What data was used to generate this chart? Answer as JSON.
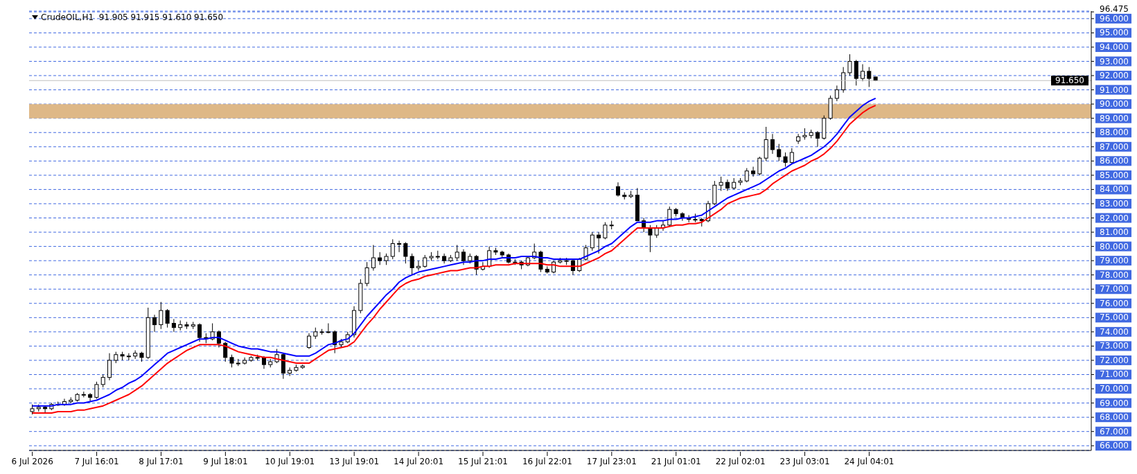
{
  "chart_data": {
    "type": "candlestick",
    "title": "CrudeOIL,H1  91.905 91.915 91.610 91.650",
    "categories": [
      "6 Jul 2026",
      null,
      null,
      null,
      null,
      null,
      null,
      null,
      null,
      null,
      "7 Jul 16:01",
      null,
      null,
      null,
      null,
      null,
      null,
      null,
      null,
      null,
      "8 Jul 17:01",
      null,
      null,
      null,
      null,
      null,
      null,
      null,
      null,
      null,
      "9 Jul 18:01",
      null,
      null,
      null,
      null,
      null,
      null,
      null,
      null,
      null,
      "10 Jul 19:01",
      null,
      null,
      null,
      null,
      null,
      null,
      null,
      null,
      null,
      "13 Jul 19:01",
      null,
      null,
      null,
      null,
      null,
      null,
      null,
      null,
      null,
      "14 Jul 20:01",
      null,
      null,
      null,
      null,
      null,
      null,
      null,
      null,
      null,
      "15 Jul 21:01",
      null,
      null,
      null,
      null,
      null,
      null,
      null,
      null,
      null,
      "16 Jul 22:01",
      null,
      null,
      null,
      null,
      null,
      null,
      null,
      null,
      null,
      "17 Jul 23:01",
      null,
      null,
      null,
      null,
      null,
      null,
      null,
      null,
      null,
      "21 Jul 01:01",
      null,
      null,
      null,
      null,
      null,
      null,
      null,
      null,
      null,
      "22 Jul 02:01",
      null,
      null,
      null,
      null,
      null,
      null,
      null,
      null,
      null,
      "23 Jul 03:01",
      null,
      null,
      null,
      null,
      null,
      null,
      null,
      null,
      null,
      "24 Jul 04:01",
      null,
      null,
      null,
      null,
      null,
      null,
      null,
      null,
      null,
      null,
      null,
      null,
      null,
      null,
      null,
      null,
      null,
      null,
      null,
      null,
      null,
      null,
      null,
      null,
      null,
      null,
      null,
      null,
      null,
      null,
      null,
      null,
      null,
      null
    ],
    "ohlc": [
      [
        68.4,
        68.9,
        68.2,
        68.6
      ],
      [
        68.6,
        68.9,
        68.4,
        68.7
      ],
      [
        68.7,
        68.8,
        68.3,
        68.6
      ],
      [
        68.6,
        69.0,
        68.5,
        68.9
      ],
      [
        68.9,
        69.1,
        68.8,
        68.9
      ],
      [
        68.9,
        69.3,
        68.8,
        69.1
      ],
      [
        69.1,
        69.4,
        69.0,
        69.2
      ],
      [
        69.2,
        69.7,
        69.1,
        69.6
      ],
      [
        69.6,
        69.8,
        69.4,
        69.6
      ],
      [
        69.6,
        69.7,
        69.1,
        69.4
      ],
      [
        69.4,
        70.5,
        69.3,
        70.3
      ],
      [
        70.3,
        71.0,
        70.1,
        70.8
      ],
      [
        70.8,
        72.5,
        70.6,
        72.0
      ],
      [
        72.0,
        72.6,
        71.8,
        72.4
      ],
      [
        72.4,
        72.6,
        72.0,
        72.3
      ],
      [
        72.3,
        72.5,
        72.0,
        72.3
      ],
      [
        72.3,
        72.7,
        72.1,
        72.5
      ],
      [
        72.5,
        72.6,
        71.9,
        72.2
      ],
      [
        72.2,
        75.7,
        72.1,
        75.0
      ],
      [
        75.0,
        75.2,
        74.0,
        74.5
      ],
      [
        74.5,
        76.1,
        74.2,
        75.5
      ],
      [
        75.5,
        75.6,
        74.3,
        74.6
      ],
      [
        74.6,
        74.9,
        74.0,
        74.3
      ],
      [
        74.3,
        74.8,
        74.1,
        74.5
      ],
      [
        74.5,
        74.7,
        74.2,
        74.4
      ],
      [
        74.4,
        74.7,
        74.2,
        74.5
      ],
      [
        74.5,
        74.6,
        73.3,
        73.6
      ],
      [
        73.6,
        73.9,
        73.2,
        73.5
      ],
      [
        73.5,
        74.6,
        73.4,
        74.0
      ],
      [
        74.0,
        74.1,
        72.9,
        73.2
      ],
      [
        73.2,
        73.3,
        71.9,
        72.2
      ],
      [
        72.2,
        72.4,
        71.5,
        71.8
      ],
      [
        71.8,
        72.1,
        71.6,
        71.8
      ],
      [
        71.8,
        72.2,
        71.7,
        72.0
      ],
      [
        72.0,
        72.3,
        71.9,
        72.2
      ],
      [
        72.2,
        72.4,
        72.0,
        72.2
      ],
      [
        72.2,
        72.3,
        71.4,
        71.7
      ],
      [
        71.7,
        72.1,
        71.5,
        71.9
      ],
      [
        71.9,
        72.8,
        71.8,
        72.4
      ],
      [
        72.4,
        72.5,
        70.7,
        71.1
      ],
      [
        71.1,
        71.5,
        70.9,
        71.3
      ],
      [
        71.3,
        71.7,
        71.2,
        71.5
      ],
      [
        71.5,
        71.7,
        71.4,
        71.6
      ],
      [
        72.9,
        73.9,
        72.8,
        73.7
      ],
      [
        73.7,
        74.3,
        73.5,
        74.0
      ],
      [
        74.0,
        74.2,
        73.8,
        74.0
      ],
      [
        74.0,
        74.6,
        73.9,
        74.0
      ],
      [
        74.0,
        74.1,
        72.5,
        73.1
      ],
      [
        73.1,
        73.5,
        72.9,
        73.3
      ],
      [
        73.3,
        74.0,
        73.2,
        73.8
      ],
      [
        73.8,
        75.8,
        73.6,
        75.5
      ],
      [
        75.5,
        77.7,
        75.3,
        77.4
      ],
      [
        77.4,
        78.9,
        77.2,
        78.5
      ],
      [
        78.5,
        80.1,
        78.3,
        79.2
      ],
      [
        79.2,
        79.6,
        78.7,
        79.0
      ],
      [
        79.0,
        79.5,
        78.7,
        79.3
      ],
      [
        79.3,
        80.5,
        79.1,
        80.2
      ],
      [
        80.2,
        80.4,
        79.6,
        80.2
      ],
      [
        80.2,
        80.3,
        78.8,
        79.3
      ],
      [
        79.3,
        79.5,
        78.0,
        78.5
      ],
      [
        78.5,
        79.0,
        78.3,
        78.6
      ],
      [
        78.6,
        79.4,
        78.5,
        79.2
      ],
      [
        79.2,
        79.6,
        79.0,
        79.3
      ],
      [
        79.3,
        79.7,
        79.1,
        79.3
      ],
      [
        79.3,
        79.5,
        78.8,
        79.0
      ],
      [
        79.0,
        79.4,
        78.9,
        79.2
      ],
      [
        79.2,
        80.1,
        79.0,
        79.6
      ],
      [
        79.6,
        79.8,
        78.7,
        79.0
      ],
      [
        79.0,
        79.5,
        78.8,
        79.3
      ],
      [
        79.3,
        79.4,
        78.0,
        78.4
      ],
      [
        78.4,
        78.9,
        78.3,
        78.6
      ],
      [
        78.6,
        80.0,
        78.5,
        79.7
      ],
      [
        79.7,
        79.9,
        79.4,
        79.6
      ],
      [
        79.6,
        79.7,
        79.2,
        79.4
      ],
      [
        79.4,
        79.5,
        78.8,
        78.9
      ],
      [
        78.9,
        79.1,
        78.7,
        78.9
      ],
      [
        78.9,
        79.0,
        78.4,
        78.7
      ],
      [
        78.7,
        79.3,
        78.6,
        79.2
      ],
      [
        79.2,
        80.2,
        79.1,
        79.6
      ],
      [
        79.6,
        79.7,
        78.2,
        78.4
      ],
      [
        78.4,
        78.6,
        78.1,
        78.2
      ],
      [
        78.2,
        79.0,
        78.1,
        78.9
      ],
      [
        78.9,
        79.2,
        78.8,
        79.0
      ],
      [
        79.0,
        79.2,
        78.7,
        79.0
      ],
      [
        79.0,
        79.1,
        78.0,
        78.3
      ],
      [
        78.3,
        79.2,
        78.2,
        79.1
      ],
      [
        79.1,
        80.1,
        79.0,
        79.9
      ],
      [
        79.9,
        81.0,
        79.7,
        80.8
      ],
      [
        80.8,
        81.0,
        79.5,
        80.6
      ],
      [
        80.6,
        81.7,
        80.5,
        81.5
      ],
      [
        81.5,
        81.8,
        81.2,
        81.5
      ],
      [
        84.2,
        84.5,
        83.5,
        83.6
      ],
      [
        83.6,
        83.8,
        83.3,
        83.5
      ],
      [
        83.5,
        83.9,
        83.4,
        83.6
      ],
      [
        83.6,
        84.1,
        81.8,
        81.8
      ],
      [
        81.8,
        82.0,
        81.0,
        81.3
      ],
      [
        81.3,
        81.5,
        79.6,
        80.8
      ],
      [
        80.8,
        81.5,
        80.6,
        81.3
      ],
      [
        81.3,
        81.8,
        81.1,
        81.5
      ],
      [
        81.5,
        82.8,
        81.4,
        82.6
      ],
      [
        82.6,
        82.7,
        82.1,
        82.3
      ],
      [
        82.3,
        82.4,
        81.8,
        82.0
      ],
      [
        82.0,
        82.2,
        81.7,
        81.9
      ],
      [
        81.9,
        82.3,
        81.7,
        81.9
      ],
      [
        81.9,
        82.0,
        81.4,
        81.8
      ],
      [
        81.8,
        83.2,
        81.7,
        83.0
      ],
      [
        83.0,
        84.6,
        82.9,
        84.3
      ],
      [
        84.3,
        84.9,
        83.9,
        84.5
      ],
      [
        84.5,
        84.7,
        83.9,
        84.1
      ],
      [
        84.1,
        84.8,
        84.0,
        84.5
      ],
      [
        84.5,
        84.8,
        84.3,
        84.6
      ],
      [
        84.6,
        85.5,
        84.5,
        85.3
      ],
      [
        85.3,
        85.6,
        84.9,
        85.1
      ],
      [
        85.1,
        86.3,
        85.0,
        86.2
      ],
      [
        86.2,
        88.4,
        86.0,
        87.5
      ],
      [
        87.5,
        87.9,
        86.5,
        86.8
      ],
      [
        86.8,
        87.2,
        86.0,
        86.3
      ],
      [
        86.3,
        86.6,
        85.6,
        85.9
      ],
      [
        85.9,
        86.9,
        85.8,
        86.6
      ],
      [
        87.4,
        87.9,
        87.2,
        87.7
      ],
      [
        87.7,
        88.3,
        87.5,
        87.8
      ],
      [
        87.8,
        88.2,
        87.6,
        88.0
      ],
      [
        88.0,
        88.1,
        87.0,
        87.6
      ],
      [
        87.6,
        89.2,
        87.5,
        89.0
      ],
      [
        89.0,
        90.6,
        88.9,
        90.4
      ],
      [
        90.4,
        91.3,
        90.2,
        91.0
      ],
      [
        91.0,
        92.6,
        90.8,
        92.2
      ],
      [
        92.2,
        93.5,
        92.0,
        93.0
      ],
      [
        93.0,
        93.1,
        91.3,
        91.8
      ],
      [
        91.8,
        92.8,
        91.6,
        92.3
      ],
      [
        92.3,
        92.6,
        91.2,
        91.8
      ],
      [
        91.905,
        91.915,
        91.61,
        91.65
      ],
      null,
      null,
      null,
      null,
      null,
      null,
      null,
      null,
      null,
      null,
      null,
      null,
      null,
      null,
      null,
      null,
      null,
      null,
      null,
      null,
      null,
      null,
      null,
      null,
      null,
      null,
      null,
      null,
      null,
      null,
      null,
      null,
      null
    ],
    "series": [
      {
        "type": "line",
        "color": "#0000ff",
        "values": [
          68.8,
          68.8,
          68.8,
          68.8,
          68.9,
          68.9,
          68.9,
          69.0,
          69.0,
          69.1,
          69.2,
          69.4,
          69.6,
          69.9,
          70.1,
          70.4,
          70.6,
          70.9,
          71.3,
          71.7,
          72.1,
          72.5,
          72.7,
          72.9,
          73.1,
          73.3,
          73.5,
          73.5,
          73.6,
          73.6,
          73.4,
          73.2,
          73.0,
          72.9,
          72.8,
          72.8,
          72.7,
          72.6,
          72.6,
          72.5,
          72.4,
          72.3,
          72.3,
          72.3,
          72.5,
          72.8,
          73.1,
          73.2,
          73.4,
          73.5,
          73.9,
          74.5,
          75.1,
          75.6,
          76.1,
          76.6,
          77.0,
          77.5,
          77.8,
          78.0,
          78.2,
          78.3,
          78.4,
          78.5,
          78.6,
          78.7,
          78.8,
          78.9,
          78.9,
          79.0,
          79.0,
          79.1,
          79.1,
          79.2,
          79.2,
          79.2,
          79.3,
          79.3,
          79.3,
          79.2,
          79.2,
          79.1,
          79.1,
          79.1,
          79.1,
          79.1,
          79.3,
          79.5,
          79.7,
          80.0,
          80.2,
          80.6,
          81.0,
          81.4,
          81.7,
          81.7,
          81.7,
          81.8,
          81.8,
          81.9,
          81.9,
          82.0,
          82.0,
          82.1,
          82.2,
          82.5,
          82.8,
          83.1,
          83.4,
          83.6,
          83.8,
          84.0,
          84.2,
          84.4,
          84.7,
          85.0,
          85.3,
          85.5,
          85.8,
          86.0,
          86.2,
          86.4,
          86.7,
          87.0,
          87.4,
          87.9,
          88.5,
          89.1,
          89.5,
          89.9,
          90.2,
          90.4,
          null,
          null,
          null,
          null,
          null,
          null,
          null,
          null,
          null,
          null,
          null,
          null,
          null,
          null,
          null,
          null,
          null,
          null,
          null,
          null,
          null,
          null,
          null,
          null,
          null,
          null,
          null,
          null,
          null,
          null,
          null,
          null,
          null
        ]
      },
      {
        "type": "line",
        "color": "#ff0000",
        "values": [
          68.3,
          68.3,
          68.3,
          68.3,
          68.4,
          68.4,
          68.4,
          68.5,
          68.5,
          68.6,
          68.7,
          68.8,
          69.0,
          69.2,
          69.4,
          69.6,
          69.9,
          70.2,
          70.6,
          71.0,
          71.4,
          71.8,
          72.1,
          72.4,
          72.7,
          72.9,
          73.1,
          73.1,
          73.1,
          73.1,
          73.0,
          72.8,
          72.6,
          72.5,
          72.4,
          72.3,
          72.2,
          72.2,
          72.1,
          72.0,
          71.9,
          71.8,
          71.8,
          71.8,
          72.1,
          72.4,
          72.7,
          72.8,
          72.9,
          73.0,
          73.3,
          73.9,
          74.5,
          75.0,
          75.6,
          76.1,
          76.6,
          77.1,
          77.4,
          77.6,
          77.7,
          77.9,
          78.0,
          78.1,
          78.2,
          78.3,
          78.3,
          78.4,
          78.5,
          78.5,
          78.6,
          78.6,
          78.7,
          78.7,
          78.7,
          78.8,
          78.8,
          78.8,
          78.8,
          78.8,
          78.7,
          78.7,
          78.6,
          78.6,
          78.6,
          78.6,
          78.8,
          79.0,
          79.2,
          79.5,
          79.7,
          80.1,
          80.5,
          80.9,
          81.3,
          81.3,
          81.3,
          81.3,
          81.3,
          81.4,
          81.5,
          81.5,
          81.6,
          81.6,
          81.7,
          82.0,
          82.3,
          82.6,
          83.0,
          83.2,
          83.4,
          83.5,
          83.6,
          83.7,
          84.0,
          84.4,
          84.7,
          85.0,
          85.3,
          85.5,
          85.7,
          86.0,
          86.2,
          86.5,
          86.9,
          87.4,
          88.0,
          88.6,
          89.0,
          89.4,
          89.7,
          89.9,
          null,
          null,
          null,
          null,
          null,
          null,
          null,
          null,
          null,
          null,
          null,
          null,
          null,
          null,
          null,
          null,
          null,
          null,
          null,
          null,
          null,
          null,
          null,
          null,
          null,
          null,
          null,
          null,
          null,
          null,
          null,
          null,
          null
        ]
      }
    ],
    "ylim": [
      65.67,
      96.53
    ],
    "yticks": [
      {
        "value": 66,
        "label": "66.000"
      },
      {
        "value": 67,
        "label": "67.000"
      },
      {
        "value": 68,
        "label": "68.000"
      },
      {
        "value": 69,
        "label": "69.000"
      },
      {
        "value": 70,
        "label": "70.000"
      },
      {
        "value": 71,
        "label": "71.000"
      },
      {
        "value": 72,
        "label": "72.000"
      },
      {
        "value": 73,
        "label": "73.000"
      },
      {
        "value": 74,
        "label": "74.000"
      },
      {
        "value": 75,
        "label": "75.000"
      },
      {
        "value": 76,
        "label": "76.000"
      },
      {
        "value": 77,
        "label": "77.000"
      },
      {
        "value": 78,
        "label": "78.000"
      },
      {
        "value": 79,
        "label": "79.000"
      },
      {
        "value": 80,
        "label": "80.000"
      },
      {
        "value": 81,
        "label": "81.000"
      },
      {
        "value": 82,
        "label": "82.000"
      },
      {
        "value": 83,
        "label": "83.000"
      },
      {
        "value": 84,
        "label": "84.000"
      },
      {
        "value": 85,
        "label": "85.000"
      },
      {
        "value": 86,
        "label": "86.000"
      },
      {
        "value": 87,
        "label": "87.000"
      },
      {
        "value": 88,
        "label": "88.000"
      },
      {
        "value": 89,
        "label": "89.000"
      },
      {
        "value": 90,
        "label": "90.000"
      },
      {
        "value": 91,
        "label": "91.000"
      },
      {
        "value": 92,
        "label": "92.000"
      },
      {
        "value": 93,
        "label": "93.000"
      },
      {
        "value": 94,
        "label": "94.000"
      },
      {
        "value": 95,
        "label": "95.000"
      },
      {
        "value": 96,
        "label": "96.000"
      },
      {
        "value": 96.475,
        "label": "96.475"
      }
    ],
    "grid": true,
    "ref_lines": [
      {
        "axis": "y",
        "value": 91.65,
        "label": "91.650",
        "color": "#c0c0c0"
      }
    ],
    "bands": [
      {
        "axis": "y",
        "from": 89,
        "to": 90,
        "color": "#deb887"
      }
    ]
  }
}
